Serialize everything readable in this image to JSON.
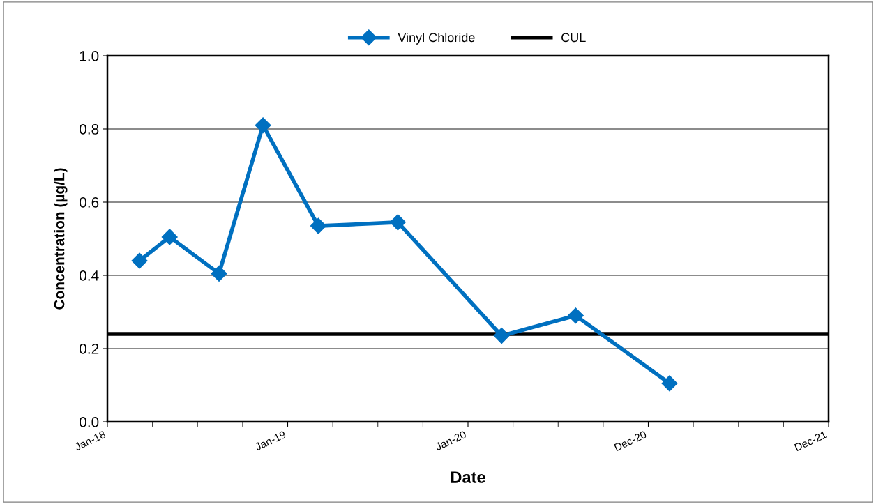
{
  "chart_data": {
    "type": "line",
    "xlabel": "Date",
    "ylabel": "Concentration (µg/L)",
    "series": [
      {
        "name": "Vinyl Chloride",
        "color": "#0070c0",
        "x": [
          "2018-03-07",
          "2018-05-07",
          "2018-08-15",
          "2018-11-12",
          "2019-03-04",
          "2019-08-12",
          "2020-03-09",
          "2020-08-06",
          "2021-02-12"
        ],
        "values": [
          0.44,
          0.505,
          0.405,
          0.81,
          0.535,
          0.545,
          0.235,
          0.29,
          0.105
        ]
      }
    ],
    "ref_lines": [
      {
        "axis": "y",
        "value": 0.24,
        "label": "CUL",
        "color": "#000000"
      }
    ],
    "xlim": [
      "2018-01-01",
      "2021-12-31"
    ],
    "xticks": [
      {
        "value": "2018-01-01",
        "label": "Jan-18"
      },
      {
        "value": "2019-01-01",
        "label": "Jan-19"
      },
      {
        "value": "2020-01-01",
        "label": "Jan-20"
      },
      {
        "value": "2020-12-31",
        "label": "Dec-20"
      },
      {
        "value": "2021-12-31",
        "label": "Dec-21"
      }
    ],
    "ylim": [
      0,
      1.0
    ],
    "yticks": [
      {
        "value": 0,
        "label": "0.0"
      },
      {
        "value": 0.2,
        "label": "0.2"
      },
      {
        "value": 0.4,
        "label": "0.4"
      },
      {
        "value": 0.6,
        "label": "0.6"
      },
      {
        "value": 0.8,
        "label": "0.8"
      },
      {
        "value": 1.0,
        "label": "1.0"
      }
    ],
    "grid": "y",
    "legend": "top",
    "marker": "diamond",
    "line_style": "solid"
  }
}
